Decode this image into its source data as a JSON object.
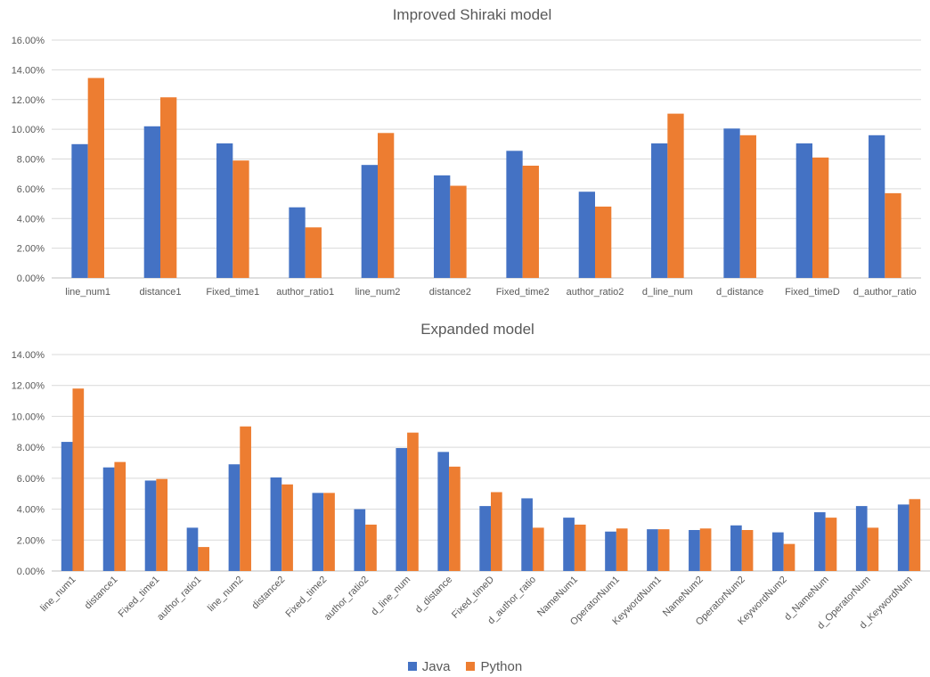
{
  "colors": {
    "java": "#4472C4",
    "python": "#ED7D31",
    "grid": "#D9D9D9",
    "axis": "#BFBFBF"
  },
  "legend": {
    "java": "Java",
    "python": "Python"
  },
  "chart_data": [
    {
      "type": "bar",
      "title": "Improved Shiraki model",
      "categories": [
        "line_num1",
        "distance1",
        "Fixed_time1",
        "author_ratio1",
        "line_num2",
        "distance2",
        "Fixed_time2",
        "author_ratio2",
        "d_line_num",
        "d_distance",
        "Fixed_timeD",
        "d_author_ratio"
      ],
      "series": [
        {
          "name": "Java",
          "values": [
            9.0,
            10.2,
            9.05,
            4.75,
            7.6,
            6.9,
            8.55,
            5.8,
            9.05,
            10.05,
            9.05,
            9.6
          ]
        },
        {
          "name": "Python",
          "values": [
            13.45,
            12.15,
            7.9,
            3.4,
            9.75,
            6.2,
            7.55,
            4.8,
            11.05,
            9.6,
            8.1,
            5.7
          ]
        }
      ],
      "ylim": [
        0,
        16
      ],
      "ytick_step": 2,
      "ytick_labels": [
        "0.00%",
        "2.00%",
        "4.00%",
        "6.00%",
        "8.00%",
        "10.00%",
        "12.00%",
        "14.00%",
        "16.00%"
      ],
      "grid": true,
      "xlabel": "",
      "ylabel": ""
    },
    {
      "type": "bar",
      "title": "Expanded model",
      "categories": [
        "line_num1",
        "distance1",
        "Fixed_time1",
        "author_ratio1",
        "line_num2",
        "distance2",
        "Fixed_time2",
        "author_ratio2",
        "d_line_num",
        "d_distance",
        "Fixed_timeD",
        "d_author_ratio",
        "NameNum1",
        "OperatorNum1",
        "KeywordNum1",
        "NameNum2",
        "OperatorNum2",
        "KeywordNum2",
        "d_NameNum",
        "d_OperatorNum",
        "d_KeywordNum"
      ],
      "series": [
        {
          "name": "Java",
          "values": [
            8.35,
            6.7,
            5.85,
            2.8,
            6.9,
            6.05,
            5.05,
            4.0,
            7.95,
            7.7,
            4.2,
            4.7,
            3.45,
            2.55,
            2.7,
            2.65,
            2.95,
            2.5,
            3.8,
            4.2,
            4.3
          ]
        },
        {
          "name": "Python",
          "values": [
            11.8,
            7.05,
            5.95,
            1.55,
            9.35,
            5.6,
            5.05,
            3.0,
            8.95,
            6.75,
            5.1,
            2.8,
            3.0,
            2.75,
            2.7,
            2.75,
            2.65,
            1.75,
            3.45,
            2.8,
            4.65
          ]
        }
      ],
      "ylim": [
        0,
        14
      ],
      "ytick_step": 2,
      "ytick_labels": [
        "0.00%",
        "2.00%",
        "4.00%",
        "6.00%",
        "8.00%",
        "10.00%",
        "12.00%",
        "14.00%"
      ],
      "grid": true,
      "xlabel": "",
      "ylabel": ""
    }
  ]
}
